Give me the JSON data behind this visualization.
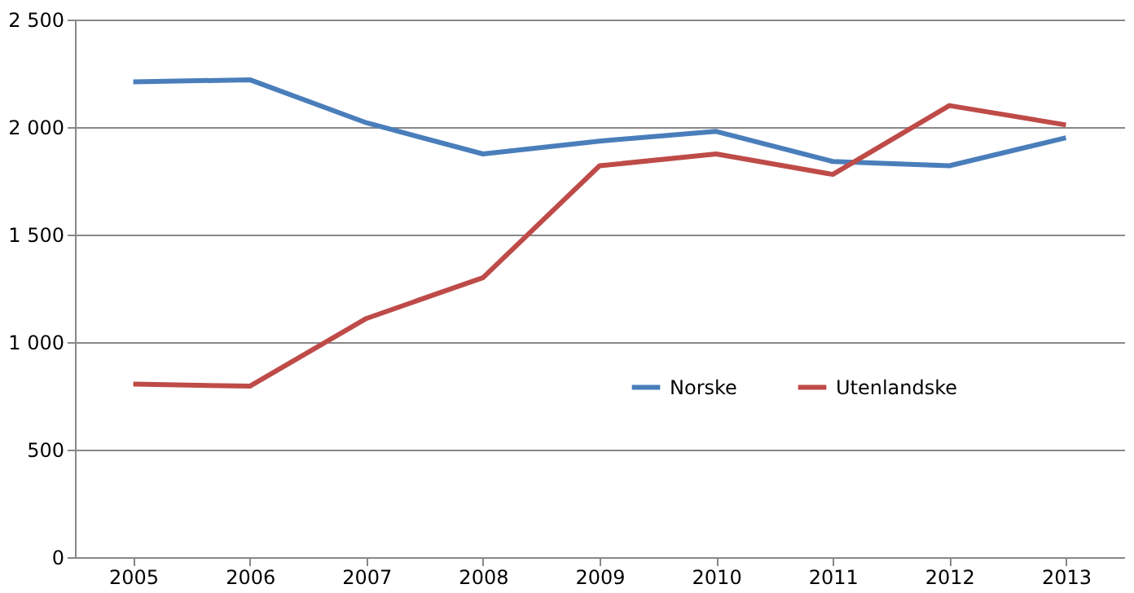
{
  "chart_data": {
    "type": "line",
    "categories": [
      "2005",
      "2006",
      "2007",
      "2008",
      "2009",
      "2010",
      "2011",
      "2012",
      "2013"
    ],
    "series": [
      {
        "name": "Norske",
        "color": "#4a7ebb",
        "values": [
          2210,
          2220,
          2020,
          1875,
          1935,
          1980,
          1840,
          1820,
          1950
        ]
      },
      {
        "name": "Utenlandske",
        "color": "#be4b48",
        "values": [
          805,
          795,
          1110,
          1300,
          1820,
          1875,
          1780,
          2100,
          2010
        ]
      }
    ],
    "ylim": [
      0,
      2500
    ],
    "yticks": [
      0,
      500,
      {
        "value": 1000,
        "label": "1 000"
      },
      {
        "value": 1500,
        "label": "1 500"
      },
      {
        "value": 2000,
        "label": "2 000"
      },
      {
        "value": 2500,
        "label": "2 500"
      }
    ],
    "grid": "y",
    "legend": "right",
    "marker": "none",
    "line_style": "solid"
  }
}
